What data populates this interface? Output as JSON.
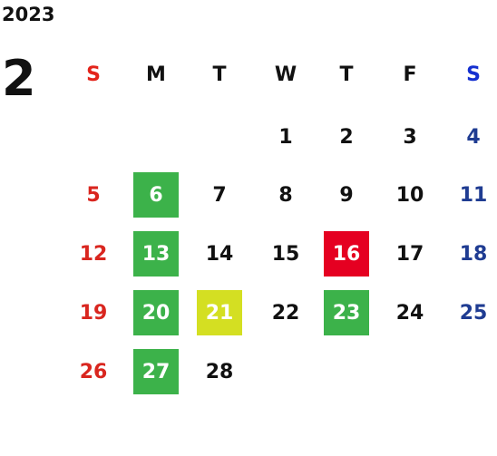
{
  "year": "2023",
  "month": "2",
  "weekdays": [
    {
      "label": "S",
      "color": "#e3241b"
    },
    {
      "label": "M",
      "color": "#111111"
    },
    {
      "label": "T",
      "color": "#111111"
    },
    {
      "label": "W",
      "color": "#111111"
    },
    {
      "label": "T",
      "color": "#111111"
    },
    {
      "label": "F",
      "color": "#111111"
    },
    {
      "label": "S",
      "color": "#1530d0"
    }
  ],
  "day_colors": [
    "#d9261f",
    "#111111",
    "#111111",
    "#111111",
    "#111111",
    "#111111",
    "#1f3c92"
  ],
  "weeks": [
    [
      null,
      null,
      null,
      "1",
      "2",
      "3",
      "4"
    ],
    [
      "5",
      {
        "day": "6",
        "bg": "#3cb24a"
      },
      "7",
      "8",
      "9",
      "10",
      "11"
    ],
    [
      "12",
      {
        "day": "13",
        "bg": "#3cb24a"
      },
      "14",
      "15",
      {
        "day": "16",
        "bg": "#e50021"
      },
      "17",
      "18"
    ],
    [
      "19",
      {
        "day": "20",
        "bg": "#3cb24a"
      },
      {
        "day": "21",
        "bg": "#d4df22"
      },
      "22",
      {
        "day": "23",
        "bg": "#3cb24a"
      },
      "24",
      "25"
    ],
    [
      "26",
      {
        "day": "27",
        "bg": "#3cb24a"
      },
      "28",
      null,
      null,
      null,
      null
    ]
  ]
}
